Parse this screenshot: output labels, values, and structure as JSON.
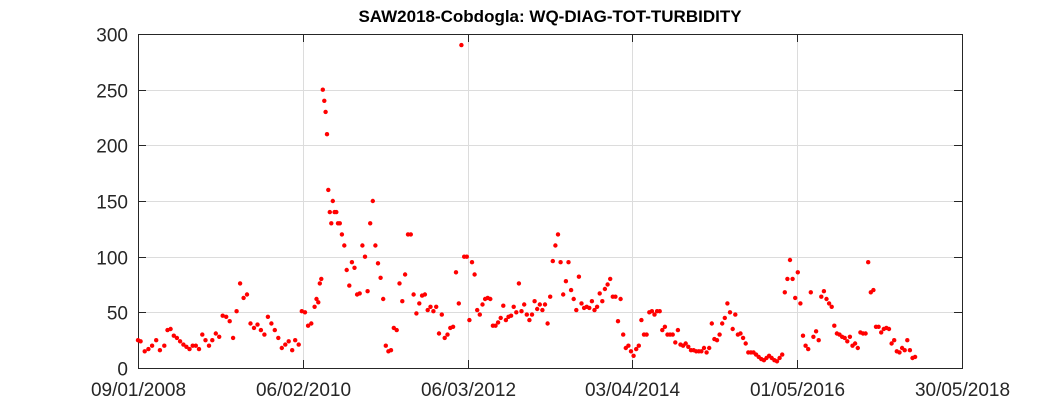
{
  "chart_data": {
    "type": "scatter",
    "title": "SAW2018-Cobdogla: WQ-DIAG-TOT-TURBIDITY",
    "xlabel": "",
    "ylabel": "",
    "x_axis_type": "date",
    "xlim": [
      "2008-01-09",
      "2018-05-30"
    ],
    "ylim": [
      0,
      300
    ],
    "x_ticks": [
      "2008-01-09",
      "2010-02-06",
      "2012-03-06",
      "2014-04-03",
      "2016-05-01",
      "2018-05-30"
    ],
    "x_tick_labels": [
      "09/01/2008",
      "06/02/2010",
      "06/03/2012",
      "03/04/2014",
      "01/05/2016",
      "30/05/2018"
    ],
    "y_ticks": [
      0,
      50,
      100,
      150,
      200,
      250,
      300
    ],
    "y_tick_labels": [
      "0",
      "50",
      "100",
      "150",
      "200",
      "250",
      "300"
    ],
    "grid": true,
    "marker_color": "#ff0000",
    "series": [
      {
        "points": [
          [
            "2008-01-09",
            25
          ],
          [
            "2008-01-21",
            24
          ],
          [
            "2008-02-09",
            15
          ],
          [
            "2008-02-26",
            17
          ],
          [
            "2008-03-14",
            20
          ],
          [
            "2008-04-02",
            25
          ],
          [
            "2008-04-19",
            16
          ],
          [
            "2008-05-09",
            20
          ],
          [
            "2008-05-24",
            34
          ],
          [
            "2008-06-07",
            35
          ],
          [
            "2008-06-22",
            29
          ],
          [
            "2008-07-06",
            27
          ],
          [
            "2008-07-21",
            24
          ],
          [
            "2008-08-05",
            21
          ],
          [
            "2008-08-19",
            19
          ],
          [
            "2008-09-02",
            17
          ],
          [
            "2008-09-17",
            20
          ],
          [
            "2008-10-01",
            20
          ],
          [
            "2008-10-16",
            17
          ],
          [
            "2008-10-31",
            30
          ],
          [
            "2008-11-15",
            25
          ],
          [
            "2008-12-01",
            20
          ],
          [
            "2008-12-16",
            25
          ],
          [
            "2009-01-01",
            31
          ],
          [
            "2009-01-17",
            28
          ],
          [
            "2009-02-02",
            47
          ],
          [
            "2009-02-18",
            46
          ],
          [
            "2009-03-06",
            42
          ],
          [
            "2009-03-22",
            27
          ],
          [
            "2009-04-07",
            51
          ],
          [
            "2009-04-23",
            76
          ],
          [
            "2009-05-09",
            63
          ],
          [
            "2009-05-25",
            66
          ],
          [
            "2009-06-10",
            40
          ],
          [
            "2009-06-26",
            36
          ],
          [
            "2009-07-12",
            39
          ],
          [
            "2009-07-28",
            34
          ],
          [
            "2009-08-13",
            30
          ],
          [
            "2009-08-29",
            46
          ],
          [
            "2009-09-14",
            40
          ],
          [
            "2009-09-30",
            34
          ],
          [
            "2009-10-16",
            27
          ],
          [
            "2009-11-01",
            18
          ],
          [
            "2009-11-17",
            21
          ],
          [
            "2009-12-03",
            24
          ],
          [
            "2009-12-19",
            16
          ],
          [
            "2010-01-02",
            25
          ],
          [
            "2010-01-18",
            21
          ],
          [
            "2010-02-01",
            51
          ],
          [
            "2010-02-16",
            50
          ],
          [
            "2010-03-02",
            38
          ],
          [
            "2010-03-17",
            40
          ],
          [
            "2010-04-01",
            55
          ],
          [
            "2010-04-10",
            62
          ],
          [
            "2010-04-18",
            59
          ],
          [
            "2010-04-25",
            76
          ],
          [
            "2010-05-02",
            80
          ],
          [
            "2010-05-09",
            250
          ],
          [
            "2010-05-16",
            240
          ],
          [
            "2010-05-22",
            230
          ],
          [
            "2010-05-28",
            210
          ],
          [
            "2010-06-03",
            160
          ],
          [
            "2010-06-10",
            140
          ],
          [
            "2010-06-17",
            130
          ],
          [
            "2010-06-24",
            150
          ],
          [
            "2010-07-02",
            140
          ],
          [
            "2010-07-10",
            140
          ],
          [
            "2010-07-18",
            130
          ],
          [
            "2010-07-26",
            130
          ],
          [
            "2010-08-05",
            120
          ],
          [
            "2010-08-16",
            110
          ],
          [
            "2010-08-27",
            88
          ],
          [
            "2010-09-08",
            74
          ],
          [
            "2010-09-20",
            95
          ],
          [
            "2010-10-02",
            90
          ],
          [
            "2010-10-14",
            66
          ],
          [
            "2010-10-26",
            67
          ],
          [
            "2010-11-07",
            110
          ],
          [
            "2010-11-19",
            100
          ],
          [
            "2010-12-01",
            69
          ],
          [
            "2010-12-13",
            130
          ],
          [
            "2010-12-25",
            150
          ],
          [
            "2011-01-06",
            110
          ],
          [
            "2011-01-18",
            94
          ],
          [
            "2011-01-30",
            81
          ],
          [
            "2011-02-11",
            62
          ],
          [
            "2011-02-23",
            20
          ],
          [
            "2011-03-07",
            15
          ],
          [
            "2011-03-19",
            16
          ],
          [
            "2011-04-01",
            36
          ],
          [
            "2011-04-14",
            34
          ],
          [
            "2011-04-27",
            76
          ],
          [
            "2011-05-10",
            60
          ],
          [
            "2011-05-23",
            84
          ],
          [
            "2011-06-05",
            120
          ],
          [
            "2011-06-18",
            120
          ],
          [
            "2011-07-01",
            66
          ],
          [
            "2011-07-14",
            49
          ],
          [
            "2011-07-27",
            58
          ],
          [
            "2011-08-09",
            65
          ],
          [
            "2011-08-22",
            66
          ],
          [
            "2011-09-04",
            52
          ],
          [
            "2011-09-17",
            55
          ],
          [
            "2011-09-30",
            51
          ],
          [
            "2011-10-13",
            55
          ],
          [
            "2011-10-26",
            31
          ],
          [
            "2011-11-08",
            48
          ],
          [
            "2011-11-21",
            27
          ],
          [
            "2011-12-04",
            30
          ],
          [
            "2011-12-17",
            36
          ],
          [
            "2011-12-30",
            37
          ],
          [
            "2012-01-12",
            86
          ],
          [
            "2012-01-25",
            58
          ],
          [
            "2012-02-06",
            290
          ],
          [
            "2012-02-19",
            100
          ],
          [
            "2012-03-02",
            100
          ],
          [
            "2012-03-14",
            43
          ],
          [
            "2012-03-26",
            95
          ],
          [
            "2012-04-07",
            84
          ],
          [
            "2012-04-19",
            52
          ],
          [
            "2012-05-01",
            48
          ],
          [
            "2012-05-13",
            57
          ],
          [
            "2012-05-25",
            62
          ],
          [
            "2012-06-06",
            63
          ],
          [
            "2012-06-18",
            62
          ],
          [
            "2012-06-30",
            38
          ],
          [
            "2012-07-12",
            38
          ],
          [
            "2012-07-24",
            41
          ],
          [
            "2012-08-05",
            45
          ],
          [
            "2012-08-17",
            56
          ],
          [
            "2012-08-29",
            43
          ],
          [
            "2012-09-10",
            46
          ],
          [
            "2012-09-22",
            47
          ],
          [
            "2012-10-04",
            55
          ],
          [
            "2012-10-16",
            50
          ],
          [
            "2012-10-28",
            76
          ],
          [
            "2012-11-09",
            51
          ],
          [
            "2012-11-21",
            57
          ],
          [
            "2012-12-03",
            48
          ],
          [
            "2012-12-15",
            43
          ],
          [
            "2012-12-27",
            48
          ],
          [
            "2013-01-08",
            60
          ],
          [
            "2013-01-20",
            53
          ],
          [
            "2013-02-01",
            57
          ],
          [
            "2013-02-13",
            52
          ],
          [
            "2013-02-25",
            57
          ],
          [
            "2013-03-09",
            40
          ],
          [
            "2013-03-21",
            64
          ],
          [
            "2013-04-02",
            96
          ],
          [
            "2013-04-14",
            110
          ],
          [
            "2013-04-26",
            120
          ],
          [
            "2013-05-08",
            95
          ],
          [
            "2013-05-20",
            66
          ],
          [
            "2013-06-01",
            78
          ],
          [
            "2013-06-13",
            95
          ],
          [
            "2013-06-25",
            70
          ],
          [
            "2013-07-07",
            62
          ],
          [
            "2013-07-19",
            52
          ],
          [
            "2013-07-31",
            82
          ],
          [
            "2013-08-12",
            58
          ],
          [
            "2013-08-24",
            54
          ],
          [
            "2013-09-05",
            55
          ],
          [
            "2013-09-17",
            54
          ],
          [
            "2013-09-29",
            60
          ],
          [
            "2013-10-11",
            52
          ],
          [
            "2013-10-23",
            55
          ],
          [
            "2013-11-04",
            67
          ],
          [
            "2013-11-16",
            60
          ],
          [
            "2013-11-28",
            71
          ],
          [
            "2013-12-10",
            75
          ],
          [
            "2013-12-22",
            80
          ],
          [
            "2014-01-03",
            64
          ],
          [
            "2014-01-15",
            64
          ],
          [
            "2014-01-27",
            42
          ],
          [
            "2014-02-08",
            62
          ],
          [
            "2014-02-20",
            30
          ],
          [
            "2014-03-04",
            18
          ],
          [
            "2014-03-16",
            20
          ],
          [
            "2014-03-28",
            15
          ],
          [
            "2014-04-09",
            11
          ],
          [
            "2014-04-21",
            17
          ],
          [
            "2014-05-03",
            20
          ],
          [
            "2014-05-15",
            43
          ],
          [
            "2014-05-27",
            30
          ],
          [
            "2014-06-08",
            30
          ],
          [
            "2014-06-20",
            50
          ],
          [
            "2014-07-02",
            51
          ],
          [
            "2014-07-14",
            48
          ],
          [
            "2014-07-26",
            51
          ],
          [
            "2014-08-07",
            51
          ],
          [
            "2014-08-19",
            34
          ],
          [
            "2014-08-31",
            37
          ],
          [
            "2014-09-12",
            30
          ],
          [
            "2014-09-24",
            30
          ],
          [
            "2014-10-06",
            30
          ],
          [
            "2014-10-18",
            23
          ],
          [
            "2014-10-30",
            34
          ],
          [
            "2014-11-11",
            21
          ],
          [
            "2014-11-23",
            20
          ],
          [
            "2014-12-05",
            22
          ],
          [
            "2014-12-17",
            19
          ],
          [
            "2014-12-29",
            16
          ],
          [
            "2015-01-10",
            16
          ],
          [
            "2015-01-22",
            15
          ],
          [
            "2015-02-03",
            15
          ],
          [
            "2015-02-15",
            15
          ],
          [
            "2015-02-27",
            18
          ],
          [
            "2015-03-11",
            14
          ],
          [
            "2015-03-23",
            18
          ],
          [
            "2015-04-04",
            40
          ],
          [
            "2015-04-16",
            26
          ],
          [
            "2015-04-28",
            25
          ],
          [
            "2015-05-10",
            30
          ],
          [
            "2015-05-22",
            40
          ],
          [
            "2015-06-03",
            45
          ],
          [
            "2015-06-15",
            58
          ],
          [
            "2015-06-27",
            50
          ],
          [
            "2015-07-09",
            35
          ],
          [
            "2015-07-21",
            48
          ],
          [
            "2015-08-02",
            30
          ],
          [
            "2015-08-14",
            31
          ],
          [
            "2015-08-26",
            27
          ],
          [
            "2015-09-07",
            22
          ],
          [
            "2015-09-19",
            14
          ],
          [
            "2015-10-01",
            14
          ],
          [
            "2015-10-13",
            14
          ],
          [
            "2015-10-25",
            12
          ],
          [
            "2015-11-06",
            10
          ],
          [
            "2015-11-18",
            8
          ],
          [
            "2015-11-30",
            7
          ],
          [
            "2015-12-12",
            9
          ],
          [
            "2015-12-24",
            11
          ],
          [
            "2016-01-05",
            9
          ],
          [
            "2016-01-17",
            7
          ],
          [
            "2016-01-29",
            6
          ],
          [
            "2016-02-10",
            9
          ],
          [
            "2016-02-22",
            12
          ],
          [
            "2016-03-05",
            68
          ],
          [
            "2016-03-17",
            80
          ],
          [
            "2016-03-29",
            97
          ],
          [
            "2016-04-10",
            80
          ],
          [
            "2016-04-22",
            63
          ],
          [
            "2016-05-04",
            86
          ],
          [
            "2016-05-16",
            58
          ],
          [
            "2016-05-28",
            29
          ],
          [
            "2016-06-09",
            20
          ],
          [
            "2016-06-21",
            17
          ],
          [
            "2016-07-03",
            68
          ],
          [
            "2016-07-15",
            28
          ],
          [
            "2016-07-27",
            33
          ],
          [
            "2016-08-08",
            25
          ],
          [
            "2016-08-20",
            64
          ],
          [
            "2016-09-01",
            69
          ],
          [
            "2016-09-13",
            62
          ],
          [
            "2016-09-25",
            58
          ],
          [
            "2016-10-07",
            55
          ],
          [
            "2016-10-19",
            38
          ],
          [
            "2016-10-31",
            31
          ],
          [
            "2016-11-12",
            30
          ],
          [
            "2016-11-24",
            28
          ],
          [
            "2016-12-06",
            27
          ],
          [
            "2016-12-18",
            24
          ],
          [
            "2016-12-30",
            28
          ],
          [
            "2017-01-11",
            20
          ],
          [
            "2017-01-23",
            22
          ],
          [
            "2017-02-04",
            18
          ],
          [
            "2017-02-16",
            32
          ],
          [
            "2017-02-28",
            31
          ],
          [
            "2017-03-12",
            31
          ],
          [
            "2017-03-24",
            95
          ],
          [
            "2017-04-05",
            68
          ],
          [
            "2017-04-17",
            70
          ],
          [
            "2017-04-29",
            37
          ],
          [
            "2017-05-11",
            37
          ],
          [
            "2017-05-23",
            32
          ],
          [
            "2017-06-04",
            35
          ],
          [
            "2017-06-16",
            36
          ],
          [
            "2017-06-28",
            35
          ],
          [
            "2017-07-10",
            22
          ],
          [
            "2017-07-22",
            25
          ],
          [
            "2017-08-03",
            15
          ],
          [
            "2017-08-15",
            14
          ],
          [
            "2017-08-27",
            18
          ],
          [
            "2017-09-08",
            16
          ],
          [
            "2017-09-20",
            25
          ],
          [
            "2017-10-02",
            16
          ],
          [
            "2017-10-14",
            9
          ],
          [
            "2017-10-26",
            10
          ]
        ]
      }
    ]
  }
}
